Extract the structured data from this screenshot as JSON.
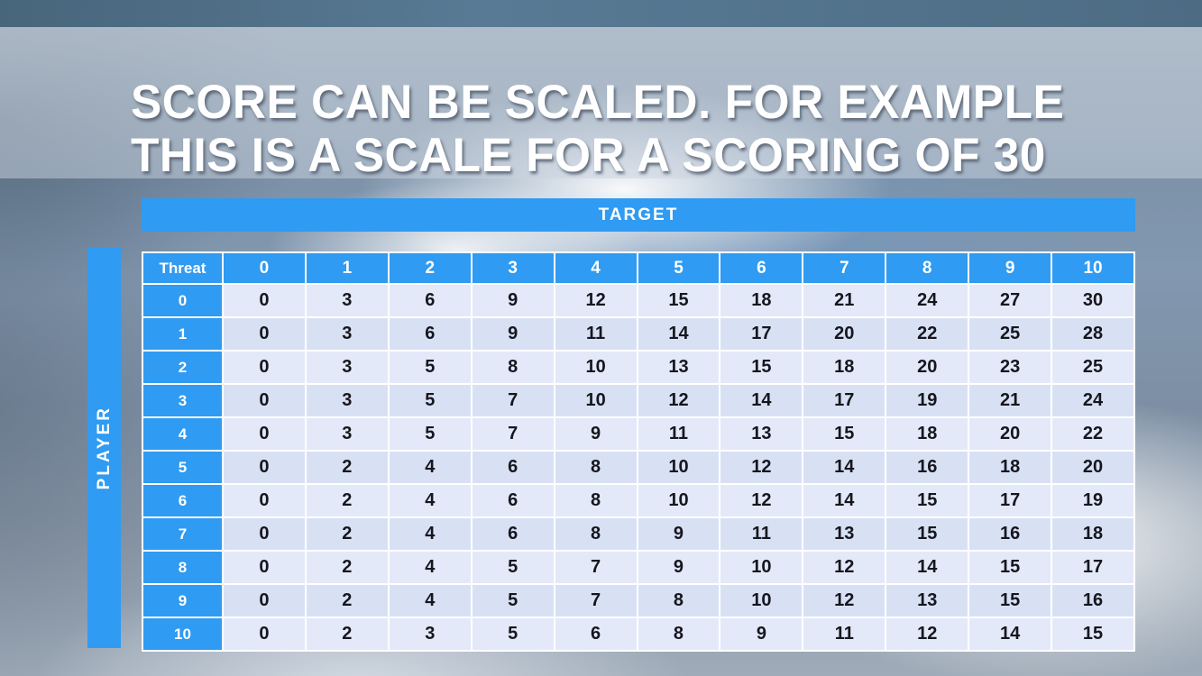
{
  "title": {
    "line1": "SCORE CAN BE SCALED. FOR EXAMPLE",
    "line2": "THIS IS A SCALE FOR A SCORING OF 30"
  },
  "table": {
    "target_label": "TARGET",
    "player_label": "PLAYER",
    "corner_label": "Threat",
    "column_headers": [
      "0",
      "1",
      "2",
      "3",
      "4",
      "5",
      "6",
      "7",
      "8",
      "9",
      "10"
    ],
    "row_headers": [
      "0",
      "1",
      "2",
      "3",
      "4",
      "5",
      "6",
      "7",
      "8",
      "9",
      "10"
    ],
    "rows": [
      [
        0,
        3,
        6,
        9,
        12,
        15,
        18,
        21,
        24,
        27,
        30
      ],
      [
        0,
        3,
        6,
        9,
        11,
        14,
        17,
        20,
        22,
        25,
        28
      ],
      [
        0,
        3,
        5,
        8,
        10,
        13,
        15,
        18,
        20,
        23,
        25
      ],
      [
        0,
        3,
        5,
        7,
        10,
        12,
        14,
        17,
        19,
        21,
        24
      ],
      [
        0,
        3,
        5,
        7,
        9,
        11,
        13,
        15,
        18,
        20,
        22
      ],
      [
        0,
        2,
        4,
        6,
        8,
        10,
        12,
        14,
        16,
        18,
        20
      ],
      [
        0,
        2,
        4,
        6,
        8,
        10,
        12,
        14,
        15,
        17,
        19
      ],
      [
        0,
        2,
        4,
        6,
        8,
        9,
        11,
        13,
        15,
        16,
        18
      ],
      [
        0,
        2,
        4,
        5,
        7,
        9,
        10,
        12,
        14,
        15,
        17
      ],
      [
        0,
        2,
        4,
        5,
        7,
        8,
        10,
        12,
        13,
        15,
        16
      ],
      [
        0,
        2,
        3,
        5,
        6,
        8,
        9,
        11,
        12,
        14,
        15
      ]
    ]
  },
  "colors": {
    "header_blue": "#2F9BF2",
    "row_light": "#E3E9F8",
    "row_dark": "#D8E1F4",
    "value_text": "#16161E"
  }
}
